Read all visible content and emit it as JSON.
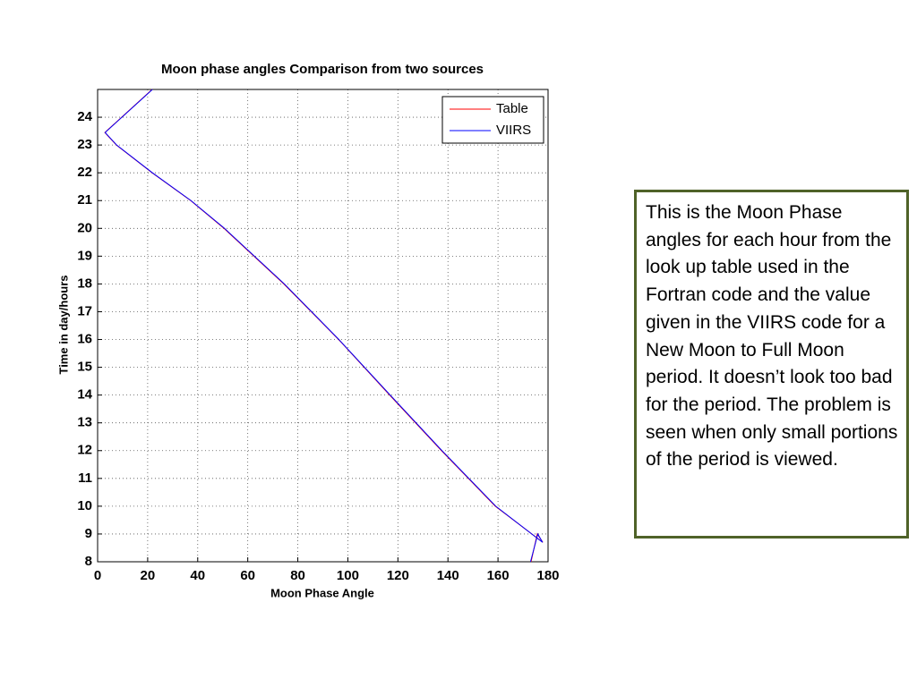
{
  "chart_data": {
    "type": "line",
    "title": "Moon phase angles Comparison from two sources",
    "x_label": "Moon Phase Angle",
    "y_label": "Time in day/hours",
    "xlim": [
      0,
      180
    ],
    "xticks": [
      0,
      20,
      40,
      60,
      80,
      100,
      120,
      140,
      160,
      180
    ],
    "ylim": [
      8,
      25
    ],
    "yticks": [
      8,
      9,
      10,
      11,
      12,
      13,
      14,
      15,
      16,
      17,
      18,
      19,
      20,
      21,
      22,
      23,
      24
    ],
    "grid": true,
    "legend": "north-east",
    "series": [
      {
        "name": "Table",
        "color": "#ff0000",
        "x": [
          173.2,
          175.7,
          177.9,
          158.9,
          137.4,
          116.7,
          96.3,
          74.4,
          50.5,
          37.2,
          21.8,
          7.5,
          2.9,
          21.8
        ],
        "values": [
          8,
          9,
          8.7,
          10,
          12,
          14,
          16,
          18,
          20,
          21,
          22,
          23,
          23.45,
          25
        ]
      },
      {
        "name": "VIIRS",
        "color": "#0000ff",
        "x": [
          173.0,
          175.9,
          177.8,
          159.1,
          137.6,
          116.9,
          96.4,
          74.6,
          50.7,
          37.3,
          21.9,
          7.6,
          3.0,
          21.9
        ],
        "values": [
          8,
          9,
          8.7,
          10,
          12,
          14,
          16,
          18,
          20,
          21,
          22,
          23,
          23.45,
          25
        ]
      }
    ]
  },
  "text_box": {
    "text": "This is the Moon Phase angles for each hour from the look up table used in the Fortran code and the value given in the VIIRS code for a New Moon to Full Moon period.  It doesn’t look too bad for the period.  The problem is seen when only small portions of the period is viewed."
  }
}
